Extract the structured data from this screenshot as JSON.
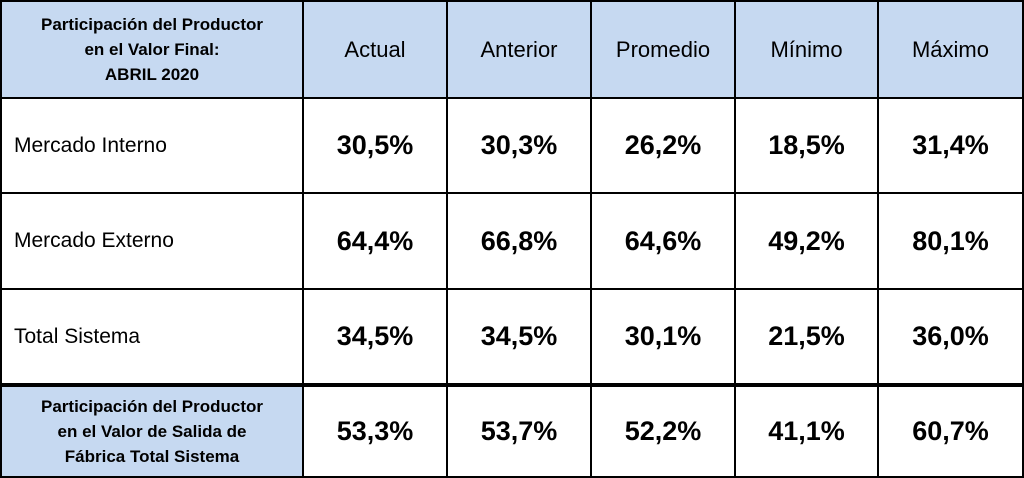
{
  "table": {
    "title": [
      "Participación del Productor",
      "en el Valor Final:",
      "ABRIL 2020"
    ],
    "columns": [
      "Actual",
      "Anterior",
      "Promedio",
      "Mínimo",
      "Máximo"
    ],
    "rows": [
      {
        "label": [
          "Mercado Interno"
        ],
        "values": [
          "30,5%",
          "30,3%",
          "26,2%",
          "18,5%",
          "31,4%"
        ]
      },
      {
        "label": [
          "Mercado Externo"
        ],
        "values": [
          "64,4%",
          "66,8%",
          "64,6%",
          "49,2%",
          "80,1%"
        ]
      },
      {
        "label": [
          "Total Sistema"
        ],
        "values": [
          "34,5%",
          "34,5%",
          "30,1%",
          "21,5%",
          "36,0%"
        ]
      },
      {
        "label": [
          "Participación del Productor",
          "en el Valor de Salida de",
          "Fábrica Total Sistema"
        ],
        "values": [
          "53,3%",
          "53,7%",
          "52,2%",
          "41,1%",
          "60,7%"
        ]
      }
    ]
  }
}
